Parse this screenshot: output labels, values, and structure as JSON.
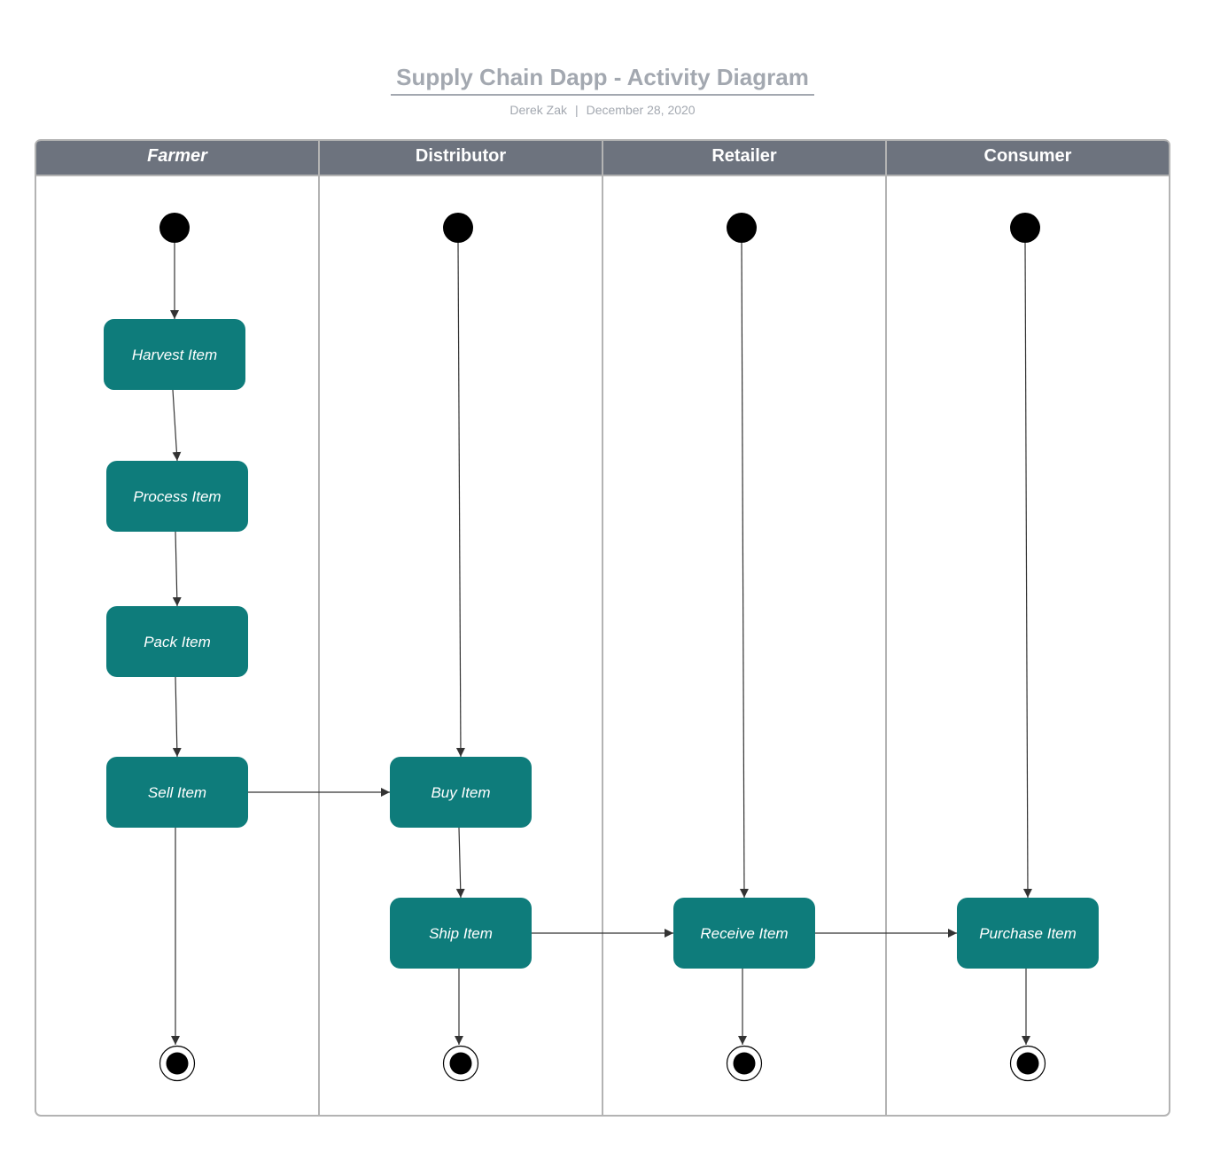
{
  "title": "Supply Chain Dapp - Activity Diagram",
  "author": "Derek Zak",
  "separator": "|",
  "date": "December 28, 2020",
  "colors": {
    "header_bg": "#6d737e",
    "activity_fill": "#0e7c7b",
    "lane_border": "#b3b3b3",
    "title_text": "#a3a8b0",
    "node": "#000000",
    "arrow": "#333333"
  },
  "lanes": [
    {
      "id": "farmer",
      "label": "Farmer",
      "italic": true
    },
    {
      "id": "distributor",
      "label": "Distributor",
      "italic": false
    },
    {
      "id": "retailer",
      "label": "Retailer",
      "italic": false
    },
    {
      "id": "consumer",
      "label": "Consumer",
      "italic": false
    }
  ],
  "activities": [
    {
      "id": "harvest",
      "label": "Harvest Item",
      "lane": "farmer"
    },
    {
      "id": "process",
      "label": "Process Item",
      "lane": "farmer"
    },
    {
      "id": "pack",
      "label": "Pack Item",
      "lane": "farmer"
    },
    {
      "id": "sell",
      "label": "Sell Item",
      "lane": "farmer"
    },
    {
      "id": "buy",
      "label": "Buy Item",
      "lane": "distributor"
    },
    {
      "id": "ship",
      "label": "Ship Item",
      "lane": "distributor"
    },
    {
      "id": "receive",
      "label": "Receive Item",
      "lane": "retailer"
    },
    {
      "id": "purchase",
      "label": "Purchase Item",
      "lane": "consumer"
    }
  ],
  "start_nodes": [
    "farmer",
    "distributor",
    "retailer",
    "consumer"
  ],
  "end_nodes": [
    "farmer",
    "distributor",
    "retailer",
    "consumer"
  ],
  "flows": [
    {
      "from": "start-farmer",
      "to": "harvest"
    },
    {
      "from": "harvest",
      "to": "process"
    },
    {
      "from": "process",
      "to": "pack"
    },
    {
      "from": "pack",
      "to": "sell"
    },
    {
      "from": "sell",
      "to": "end-farmer"
    },
    {
      "from": "sell",
      "to": "buy"
    },
    {
      "from": "start-distributor",
      "to": "buy"
    },
    {
      "from": "buy",
      "to": "ship"
    },
    {
      "from": "ship",
      "to": "end-distributor"
    },
    {
      "from": "ship",
      "to": "receive"
    },
    {
      "from": "start-retailer",
      "to": "receive"
    },
    {
      "from": "receive",
      "to": "end-retailer"
    },
    {
      "from": "receive",
      "to": "purchase"
    },
    {
      "from": "start-consumer",
      "to": "purchase"
    },
    {
      "from": "purchase",
      "to": "end-consumer"
    }
  ]
}
